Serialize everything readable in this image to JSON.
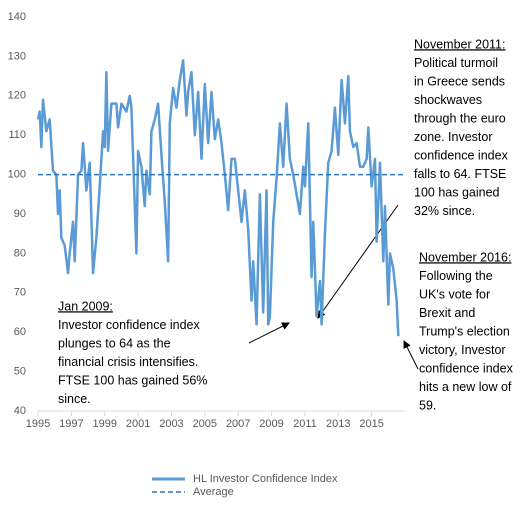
{
  "chart_data": {
    "type": "line",
    "x": [
      1995.0,
      1995.1,
      1995.2,
      1995.3,
      1995.5,
      1995.7,
      1995.9,
      1996.1,
      1996.2,
      1996.3,
      1996.4,
      1996.6,
      1996.8,
      1996.9,
      1997.1,
      1997.2,
      1997.4,
      1997.6,
      1997.7,
      1997.9,
      1998.1,
      1998.3,
      1998.5,
      1998.7,
      1998.9,
      1999.0,
      1999.1,
      1999.2,
      1999.4,
      1999.7,
      1999.8,
      2000.0,
      2000.3,
      2000.5,
      2000.6,
      2000.9,
      2001.0,
      2001.2,
      2001.4,
      2001.5,
      2001.7,
      2001.8,
      2002.0,
      2002.2,
      2002.4,
      2002.6,
      2002.8,
      2002.9,
      2003.1,
      2003.3,
      2003.5,
      2003.7,
      2003.9,
      2004.0,
      2004.2,
      2004.4,
      2004.6,
      2004.8,
      2005.0,
      2005.2,
      2005.4,
      2005.6,
      2005.8,
      2006.0,
      2006.2,
      2006.4,
      2006.6,
      2006.8,
      2007.0,
      2007.2,
      2007.4,
      2007.6,
      2007.8,
      2007.9,
      2008.1,
      2008.3,
      2008.5,
      2008.7,
      2008.8,
      2008.9,
      2009.1,
      2009.3,
      2009.5,
      2009.7,
      2009.9,
      2010.1,
      2010.3,
      2010.5,
      2010.7,
      2010.9,
      2011.0,
      2011.2,
      2011.4,
      2011.5,
      2011.7,
      2011.9,
      2012.0,
      2012.2,
      2012.4,
      2012.6,
      2012.8,
      2013.0,
      2013.2,
      2013.4,
      2013.6,
      2013.7,
      2013.9,
      2014.1,
      2014.3,
      2014.5,
      2014.7,
      2014.8,
      2015.0,
      2015.2,
      2015.3,
      2015.5,
      2015.7,
      2015.8,
      2016.0,
      2016.1,
      2016.3,
      2016.5,
      2016.6
    ],
    "series": [
      {
        "name": "HL Investor Confidence Index",
        "color": "#5b9bd5",
        "values": [
          114,
          116,
          107,
          119,
          111,
          114,
          101,
          100,
          90,
          96,
          84,
          82,
          75,
          80,
          88,
          78,
          100,
          101,
          108,
          96,
          103,
          75,
          84,
          97,
          111,
          107,
          126,
          106,
          118,
          118,
          112,
          118,
          116,
          120,
          117,
          80,
          106,
          102,
          92,
          101,
          95,
          111,
          114,
          118,
          105,
          93,
          78,
          113,
          122,
          117,
          124,
          129,
          115,
          121,
          126,
          110,
          121,
          104,
          123,
          108,
          121,
          109,
          114,
          108,
          100,
          91,
          104,
          104,
          96,
          88,
          96,
          86,
          68,
          78,
          62,
          95,
          65,
          96,
          62,
          64,
          88,
          99,
          113,
          102,
          118,
          104,
          100,
          95,
          90,
          102,
          97,
          113,
          74,
          88,
          64,
          73,
          62,
          85,
          103,
          106,
          117,
          105,
          124,
          113,
          125,
          111,
          107,
          108,
          102,
          102,
          104,
          112,
          97,
          104,
          83,
          103,
          78,
          92,
          67,
          80,
          76,
          68,
          59
        ]
      },
      {
        "name": "Average",
        "color": "#2e75b6",
        "dashed": true,
        "constant": 100
      }
    ],
    "xlim": [
      1995,
      2017
    ],
    "xticks": [
      1995,
      1997,
      1999,
      2001,
      2003,
      2005,
      2007,
      2009,
      2011,
      2013,
      2015
    ],
    "ylim": [
      40,
      140
    ],
    "yticks": [
      40,
      50,
      60,
      70,
      80,
      90,
      100,
      110,
      120,
      130,
      140
    ],
    "annotations": [
      {
        "title": "November 2011:",
        "lines": [
          "Political turmoil",
          "in Greece sends",
          "shockwaves",
          "through the euro",
          "zone. Investor",
          "confidence index",
          "falls to 64. FTSE",
          "100 has gained",
          "32% since."
        ]
      },
      {
        "title": "Jan 2009:",
        "lines": [
          "Investor confidence index",
          "plunges to 64 as the",
          "financial crisis intensifies.",
          "FTSE 100 has gained 56%",
          "since."
        ]
      },
      {
        "title": "November 2016:",
        "lines": [
          "Following the",
          "UK's vote for",
          "Brexit and",
          "Trump's election",
          "victory, Investor",
          "confidence index",
          "hits a new low of",
          "59."
        ]
      }
    ]
  }
}
